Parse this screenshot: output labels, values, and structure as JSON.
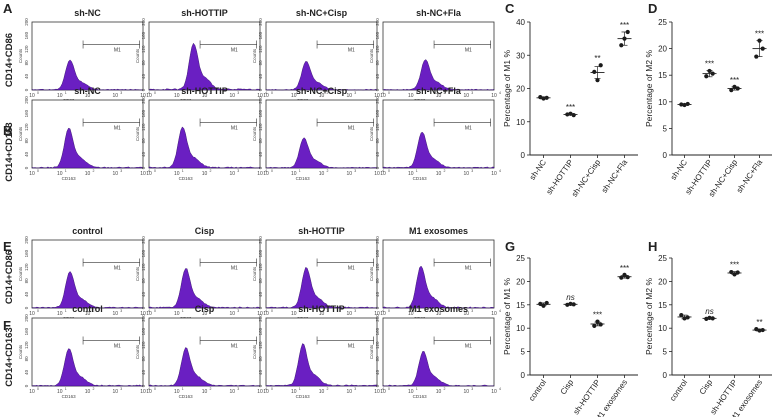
{
  "panel_letters": [
    "A",
    "B",
    "C",
    "D",
    "E",
    "F",
    "G",
    "H"
  ],
  "row_labels": [
    "CD14+CD86",
    "CD14+CD163",
    "CD14+CD86",
    "CD14+CD163"
  ],
  "histogram_rows": [
    {
      "titles": [
        "sh-NC",
        "sh-HOTTIP",
        "sh-NC+Cisp",
        "sh-NC+Fla"
      ],
      "xlabel": "CD86",
      "ylabel": "Counts",
      "gate": "M1"
    },
    {
      "titles": [
        "sh-NC",
        "sh-HOTTIP",
        "sh-NC+Cisp",
        "sh-NC+Fla"
      ],
      "xlabel": "CD163",
      "ylabel": "Counts",
      "gate": "M1"
    },
    {
      "titles": [
        "control",
        "Cisp",
        "sh-HOTTIP",
        "M1 exosomes"
      ],
      "xlabel": "CD86",
      "ylabel": "Counts",
      "gate": "M1"
    },
    {
      "titles": [
        "control",
        "Cisp",
        "sh-HOTTIP",
        "M1 exosomes"
      ],
      "xlabel": "CD163",
      "ylabel": "Counts",
      "gate": "M1"
    }
  ],
  "hist_yticks": [
    "0",
    "40",
    "80",
    "120",
    "160",
    "200"
  ],
  "hist_xticks": [
    "10",
    "10",
    "10",
    "10",
    "10"
  ],
  "hist_xexp": [
    "0",
    "1",
    "2",
    "3",
    "4"
  ],
  "hist_fill": "#6a1fc2",
  "chart_data": [
    {
      "panel": "C",
      "type": "scatter",
      "ylabel": "Percentage of M1 %",
      "categories": [
        "sh-NC",
        "sh-HOTTIP",
        "sh-NC+Cisp",
        "sh-NC+Fla"
      ],
      "ylim": [
        0,
        40
      ],
      "yticks": [
        0,
        10,
        20,
        30,
        40
      ],
      "points": [
        [
          17.4,
          17.0,
          17.2
        ],
        [
          12.2,
          12.4,
          12.0
        ],
        [
          25.0,
          22.5,
          27.0
        ],
        [
          33.0,
          35.0,
          37.0
        ]
      ],
      "means": [
        17.2,
        12.2,
        24.8,
        35.0
      ],
      "sds": [
        0.3,
        0.2,
        1.8,
        2.0
      ],
      "sig": [
        "",
        "***",
        "**",
        "***"
      ]
    },
    {
      "panel": "D",
      "type": "scatter",
      "ylabel": "Percentage of M2 %",
      "categories": [
        "sh-NC",
        "sh-HOTTIP",
        "sh-NC+Cisp",
        "sh-NC+Fla"
      ],
      "ylim": [
        0,
        25
      ],
      "yticks": [
        0,
        5,
        10,
        15,
        20,
        25
      ],
      "points": [
        [
          9.5,
          9.4,
          9.6
        ],
        [
          14.8,
          15.8,
          15.3
        ],
        [
          12.2,
          12.8,
          12.5
        ],
        [
          18.5,
          21.5,
          20.0
        ]
      ],
      "means": [
        9.5,
        15.3,
        12.5,
        20.0
      ],
      "sds": [
        0.1,
        0.6,
        0.3,
        1.5
      ],
      "sig": [
        "",
        "***",
        "***",
        "***"
      ]
    },
    {
      "panel": "G",
      "type": "scatter",
      "ylabel": "Percentage of M1 %",
      "categories": [
        "control",
        "Cisp",
        "sh-HOTTIP",
        "M1 exosomes"
      ],
      "ylim": [
        0,
        25
      ],
      "yticks": [
        0,
        5,
        10,
        15,
        20,
        25
      ],
      "points": [
        [
          15.2,
          14.8,
          15.4
        ],
        [
          15.0,
          15.2,
          15.1
        ],
        [
          10.5,
          11.4,
          10.8
        ],
        [
          20.8,
          21.4,
          20.9
        ]
      ],
      "means": [
        15.1,
        15.1,
        10.9,
        21.0
      ],
      "sds": [
        0.3,
        0.1,
        0.4,
        0.3
      ],
      "sig": [
        "",
        "ns",
        "***",
        "***"
      ]
    },
    {
      "panel": "H",
      "type": "scatter",
      "ylabel": "Percentage of M2 %",
      "categories": [
        "control",
        "Cisp",
        "sh-HOTTIP",
        "M1 exosomes"
      ],
      "ylim": [
        0,
        25
      ],
      "yticks": [
        0,
        5,
        10,
        15,
        20,
        25
      ],
      "points": [
        [
          12.8,
          12.1,
          12.3
        ],
        [
          12.0,
          12.2,
          12.1
        ],
        [
          22.0,
          21.5,
          21.9
        ],
        [
          9.8,
          9.5,
          9.6
        ]
      ],
      "means": [
        12.4,
        12.1,
        21.8,
        9.6
      ],
      "sds": [
        0.4,
        0.1,
        0.3,
        0.2
      ],
      "sig": [
        "",
        "ns",
        "***",
        "**"
      ]
    }
  ]
}
